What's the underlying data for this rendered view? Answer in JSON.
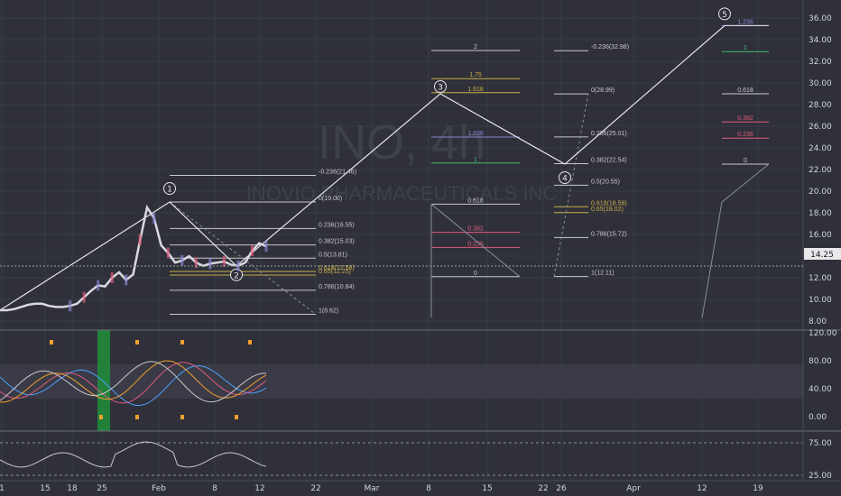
{
  "watermark": {
    "symbol": "INO, 4h",
    "company": "INOVIO PHARMACEUTICALS INC"
  },
  "colors": {
    "background": "#2f3039",
    "grid": "#3a3b45",
    "price_line": "#d9d9df",
    "wave_line": "#e6e6ea",
    "fib_white": "#c8c8cc",
    "fib_gold": "#c9b04a",
    "fib_blue": "#8a85d6",
    "fib_green": "#3fbf6a",
    "fib_red": "#e05a7e",
    "axis_text": "#d1d4dc",
    "current_price_bg": "#e8e8ea",
    "highlight_green": "#1f8f3a"
  },
  "price_axis": {
    "ticks": [
      "36.00",
      "34.00",
      "32.00",
      "30.00",
      "28.00",
      "26.00",
      "24.00",
      "22.00",
      "20.00",
      "18.00",
      "16.00",
      "14.00",
      "12.00",
      "10.00",
      "8.00"
    ],
    "current_price": "14.25"
  },
  "time_axis": {
    "ticks": [
      "1",
      "15",
      "18",
      "25",
      "Feb",
      "8",
      "12",
      "22",
      "Mar",
      "8",
      "15",
      "22",
      "26",
      "Apr",
      "12",
      "19"
    ]
  },
  "osc_axis": {
    "ticks": [
      "120.00",
      "80.00",
      "40.00",
      "0.00"
    ]
  },
  "rsi_axis": {
    "ticks": [
      "75.00",
      "25.00"
    ]
  },
  "wave_labels": [
    "1",
    "2",
    "3",
    "4",
    "5"
  ],
  "fib_sets": {
    "set1": [
      {
        "label": "-0.236(21.46)",
        "color": "white"
      },
      {
        "label": "0(19.00)",
        "color": "white"
      },
      {
        "label": "0.236(16.55)",
        "color": "white"
      },
      {
        "label": "0.382(15.03)",
        "color": "white"
      },
      {
        "label": "0.5(13.81)",
        "color": "white"
      },
      {
        "label": "0.618(12.58)",
        "color": "gold"
      },
      {
        "label": "0.65(12.25)",
        "color": "gold"
      },
      {
        "label": "0.786(10.84)",
        "color": "white"
      },
      {
        "label": "1(8.62)",
        "color": "white"
      }
    ],
    "set2": [
      {
        "label": "2",
        "color": "white"
      },
      {
        "label": "1.75",
        "color": "gold"
      },
      {
        "label": "1.618",
        "color": "gold"
      },
      {
        "label": "1.236",
        "color": "blue"
      },
      {
        "label": "1",
        "color": "green"
      },
      {
        "label": "0.618",
        "color": "white"
      },
      {
        "label": "0.382",
        "color": "red"
      },
      {
        "label": "0.236",
        "color": "red"
      },
      {
        "label": "0",
        "color": "white"
      }
    ],
    "set3": [
      {
        "label": "-0.236(32.98)",
        "color": "white"
      },
      {
        "label": "0(28.99)",
        "color": "white"
      },
      {
        "label": "0.236(25.01)",
        "color": "white"
      },
      {
        "label": "0.382(22.54)",
        "color": "white"
      },
      {
        "label": "0.5(20.55)",
        "color": "white"
      },
      {
        "label": "0.618(18.56)",
        "color": "gold"
      },
      {
        "label": "0.65(18.02)",
        "color": "gold"
      },
      {
        "label": "0.786(15.72)",
        "color": "white"
      },
      {
        "label": "1(12.11)",
        "color": "white"
      }
    ],
    "set4": [
      {
        "label": "1.236",
        "color": "blue"
      },
      {
        "label": "1",
        "color": "green"
      },
      {
        "label": "0.618",
        "color": "white"
      },
      {
        "label": "0.382",
        "color": "red"
      },
      {
        "label": "0.236",
        "color": "red"
      },
      {
        "label": "0",
        "color": "white"
      }
    ]
  },
  "chart_data": {
    "type": "line",
    "title": "INO, 4h",
    "subtitle": "INOVIO PHARMACEUTICALS INC",
    "y_range": [
      8,
      37
    ],
    "price_series": [
      9.0,
      9.0,
      9.1,
      9.3,
      9.5,
      9.6,
      9.6,
      9.4,
      9.3,
      9.3,
      9.4,
      9.6,
      10.2,
      10.8,
      11.3,
      11.2,
      12.0,
      12.5,
      11.8,
      12.3,
      15.5,
      18.5,
      17.5,
      15.0,
      14.3,
      13.4,
      13.6,
      14.0,
      13.4,
      13.1,
      13.3,
      13.4,
      13.5,
      13.2,
      13.1,
      13.4,
      14.5,
      15.2,
      14.9
    ],
    "elliott_waves": [
      {
        "label": "1",
        "price": 19.0
      },
      {
        "label": "2",
        "price": 13.1
      },
      {
        "label": "3",
        "price": 29.0
      },
      {
        "label": "4",
        "price": 22.5
      },
      {
        "label": "5",
        "price": 35.3
      }
    ],
    "current_price": 14.25
  }
}
